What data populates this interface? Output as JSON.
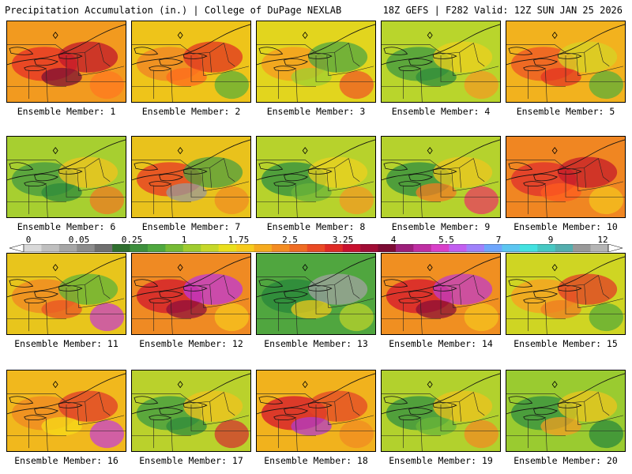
{
  "header": {
    "left_title": "Precipitation Accumulation (in.) | College of DuPage NEXLAB",
    "right_title": "18Z GEFS | F282 Valid: 12Z SUN JAN 25 2026"
  },
  "panels": [
    {
      "member": "Ensemble Member: 1",
      "base": "#f29a1f",
      "blobs": [
        "#e83a26",
        "#c0162b",
        "#ff7820",
        "#7c0d33"
      ]
    },
    {
      "member": "Ensemble Member: 2",
      "base": "#eec41a",
      "blobs": [
        "#f08a24",
        "#e03322",
        "#5fb037",
        "#ff6a1d"
      ]
    },
    {
      "member": "Ensemble Member: 3",
      "base": "#e2d51e",
      "blobs": [
        "#f5a020",
        "#4fa640",
        "#ee5a24",
        "#9fcf30"
      ]
    },
    {
      "member": "Ensemble Member: 4",
      "base": "#b9d52c",
      "blobs": [
        "#4b9f3e",
        "#eecf1e",
        "#f19b22",
        "#2f8c3c"
      ]
    },
    {
      "member": "Ensemble Member: 5",
      "base": "#f2b21e",
      "blobs": [
        "#ee5d24",
        "#d5d325",
        "#5cae38",
        "#e33423"
      ]
    },
    {
      "member": "Ensemble Member: 6",
      "base": "#a7cf30",
      "blobs": [
        "#4e9f3f",
        "#f1c31d",
        "#ee7b22",
        "#2c8a3b"
      ]
    },
    {
      "member": "Ensemble Member: 7",
      "base": "#e9c21c",
      "blobs": [
        "#e64725",
        "#4d9f3f",
        "#ef8d22",
        "#9a9a9a"
      ]
    },
    {
      "member": "Ensemble Member: 8",
      "base": "#b7d22c",
      "blobs": [
        "#3e963e",
        "#eed01f",
        "#f19a22",
        "#6bb43a"
      ]
    },
    {
      "member": "Ensemble Member: 9",
      "base": "#b5d22d",
      "blobs": [
        "#3d953e",
        "#eec61f",
        "#ea3a62",
        "#f07b23"
      ]
    },
    {
      "member": "Ensemble Member: 10",
      "base": "#f08622",
      "blobs": [
        "#e2382a",
        "#c61a2a",
        "#f4c31d",
        "#ff5b1f"
      ]
    },
    {
      "member": "Ensemble Member: 11",
      "base": "#e8c51c",
      "blobs": [
        "#f08c22",
        "#5db138",
        "#c73fc7",
        "#e95324"
      ]
    },
    {
      "member": "Ensemble Member: 12",
      "base": "#ef8a23",
      "blobs": [
        "#d5232b",
        "#bf35d8",
        "#f7c51d",
        "#8f0f3b"
      ]
    },
    {
      "member": "Ensemble Member: 13",
      "base": "#50a63f",
      "blobs": [
        "#2c8a3b",
        "#a1a1a1",
        "#b9d12c",
        "#eec81e"
      ]
    },
    {
      "member": "Ensemble Member: 14",
      "base": "#f08f21",
      "blobs": [
        "#d8232c",
        "#c23bc8",
        "#f6c31d",
        "#8c0f36"
      ]
    },
    {
      "member": "Ensemble Member: 15",
      "base": "#cfd523",
      "blobs": [
        "#f4a421",
        "#e23a27",
        "#58ab38",
        "#ef7b22"
      ]
    },
    {
      "member": "Ensemble Member: 16",
      "base": "#f1b81d",
      "blobs": [
        "#f08c22",
        "#df3b29",
        "#c642d0",
        "#f7db18"
      ]
    },
    {
      "member": "Ensemble Member: 17",
      "base": "#bad12c",
      "blobs": [
        "#4aa13f",
        "#f0c11d",
        "#d3342f",
        "#2f8b3b"
      ]
    },
    {
      "member": "Ensemble Member: 18",
      "base": "#f1b21d",
      "blobs": [
        "#d8242c",
        "#e34527",
        "#f08b22",
        "#b13bc9"
      ]
    },
    {
      "member": "Ensemble Member: 19",
      "base": "#b2d12d",
      "blobs": [
        "#3f983e",
        "#eec21e",
        "#f08b22",
        "#6ab53a"
      ]
    },
    {
      "member": "Ensemble Member: 20",
      "base": "#9acb30",
      "blobs": [
        "#3d963e",
        "#ecc41e",
        "#2a8a3b",
        "#f19d22"
      ]
    }
  ],
  "colorbar": {
    "labels": [
      "0",
      "0.05",
      "0.25",
      "1",
      "1.75",
      "2.5",
      "3.25",
      "4",
      "5.5",
      "7",
      "9",
      "12"
    ],
    "colors": [
      "#d9d9d9",
      "#bfbfbf",
      "#a6a6a6",
      "#8c8c8c",
      "#6f6f6f",
      "#2f6f2f",
      "#3d8f3d",
      "#4fa83f",
      "#76bb35",
      "#9fcc2f",
      "#c6d82a",
      "#eadf1d",
      "#f7cb1d",
      "#f6ab1f",
      "#f38c22",
      "#ef6c23",
      "#ea4a24",
      "#df2a25",
      "#c8102e",
      "#a10c35",
      "#7c0b34",
      "#9c1f7a",
      "#bf2fa3",
      "#d940c9",
      "#c25ff0",
      "#9f82fb",
      "#6fa6fc",
      "#5cc6f1",
      "#43e2e1",
      "#47c8c3",
      "#54aeae",
      "#999999",
      "#b4b4b4"
    ]
  }
}
